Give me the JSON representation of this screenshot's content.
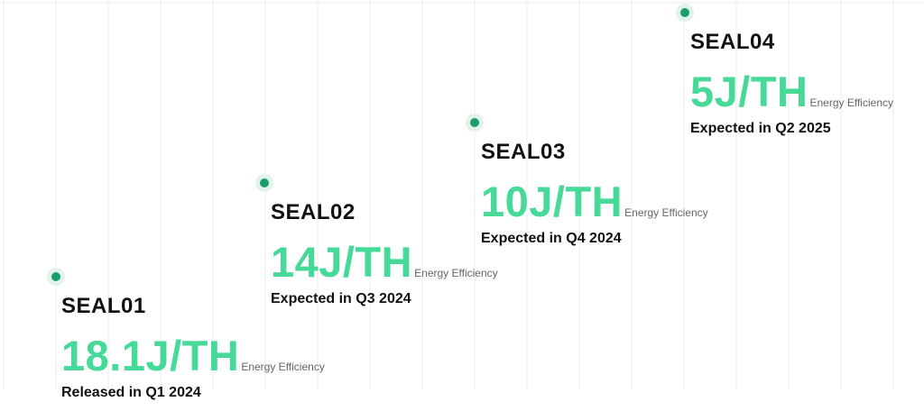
{
  "items": [
    {
      "name": "SEAL01",
      "efficiency": "18.1J/TH",
      "efficiency_label": "Energy Efficiency",
      "status": "Released in Q1 2024"
    },
    {
      "name": "SEAL02",
      "efficiency": "14J/TH",
      "efficiency_label": "Energy Efficiency",
      "status": "Expected in Q3 2024"
    },
    {
      "name": "SEAL03",
      "efficiency": "10J/TH",
      "efficiency_label": "Energy Efficiency",
      "status": "Expected in Q4 2024"
    },
    {
      "name": "SEAL04",
      "efficiency": "5J/TH",
      "efficiency_label": "Energy Efficiency",
      "status": "Expected in Q2 2025"
    }
  ]
}
